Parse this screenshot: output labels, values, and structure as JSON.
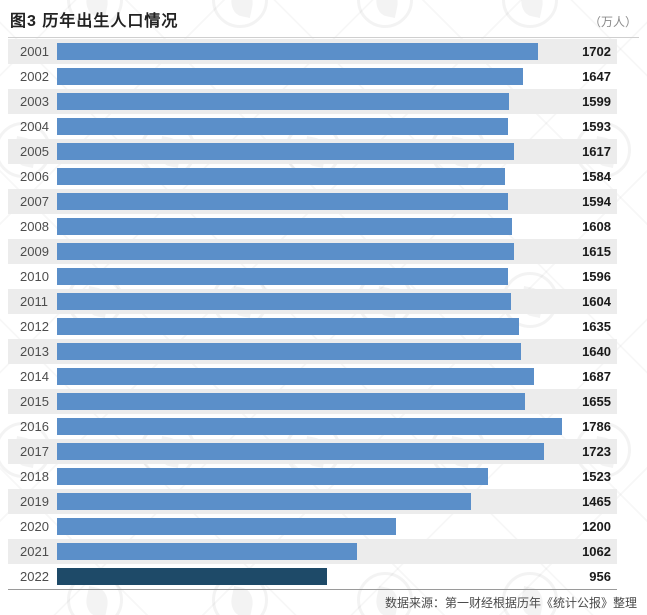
{
  "header": {
    "title": "图3 历年出生人口情况",
    "unit": "（万人）"
  },
  "chart_data": {
    "type": "bar",
    "orientation": "horizontal",
    "title": "图3 历年出生人口情况",
    "unit": "万人",
    "categories": [
      "2001",
      "2002",
      "2003",
      "2004",
      "2005",
      "2006",
      "2007",
      "2008",
      "2009",
      "2010",
      "2011",
      "2012",
      "2013",
      "2014",
      "2015",
      "2016",
      "2017",
      "2018",
      "2019",
      "2020",
      "2021",
      "2022"
    ],
    "values": [
      1702,
      1647,
      1599,
      1593,
      1617,
      1584,
      1594,
      1608,
      1615,
      1596,
      1604,
      1635,
      1640,
      1687,
      1655,
      1786,
      1723,
      1523,
      1465,
      1200,
      1062,
      956
    ],
    "xlim": [
      0,
      1980
    ],
    "value_labels_shown": true,
    "grid": false,
    "legend": "none",
    "bar_color": "#5b8fc9",
    "highlight_category": "2022",
    "highlight_color": "#1e4a68",
    "row_shade_color": "#ececec"
  },
  "footer": {
    "source": "数据来源：第一财经根据历年《统计公报》整理"
  }
}
